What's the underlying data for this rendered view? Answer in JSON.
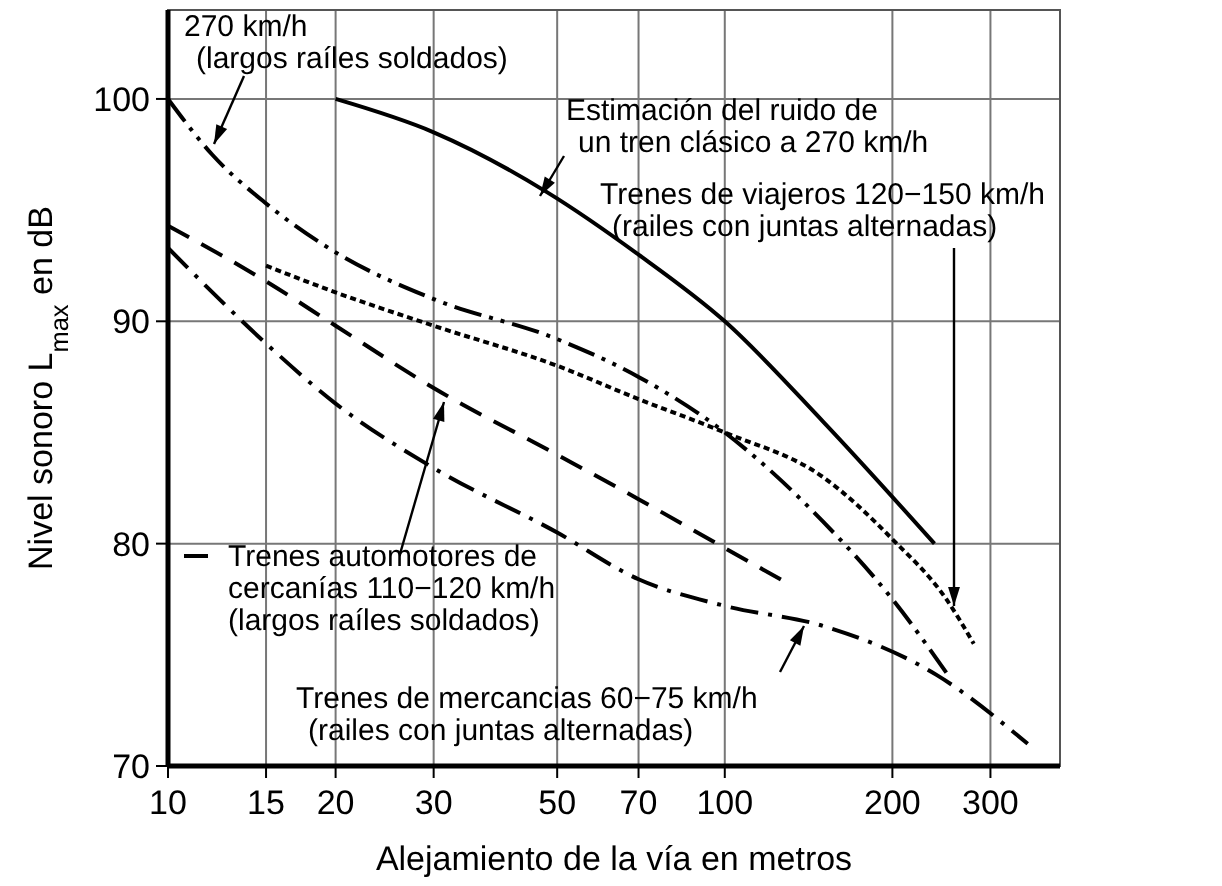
{
  "chart_data": {
    "type": "line",
    "xlabel": "Alejamiento de la vía en metros",
    "ylabel": "Nivel sonoro L$_{max}$en dB",
    "log": "x",
    "grid": true,
    "xlim": [
      10,
      400
    ],
    "ylim": [
      70,
      104
    ],
    "xticks": [
      10,
      15,
      20,
      30,
      50,
      70,
      100,
      200,
      300
    ],
    "yticks": [
      70,
      80,
      90,
      100
    ],
    "marker": "none",
    "legend": "bottom left",
    "series": [
      {
        "name": "270 km/h\n(largos raíles soldados)",
        "color": "#000000",
        "line_style": "dashdotdot",
        "x": [
          10,
          12,
          15,
          20,
          30,
          50,
          70,
          100,
          150,
          200,
          250
        ],
        "values": [
          100,
          97.5,
          95.3,
          93.1,
          91,
          89.2,
          87.5,
          85,
          81,
          77.5,
          74.2
        ]
      },
      {
        "name": "Estimación del ruido de\nun tren clásico a 270 km/h",
        "color": "#000000",
        "line_style": "solid",
        "x": [
          20,
          30,
          48,
          70,
          100,
          150,
          238
        ],
        "values": [
          100,
          98.5,
          95.8,
          93,
          90,
          85.5,
          80
        ]
      },
      {
        "name": "Trenes de viajeros 120−150 km/h\n(railes con juntas alternadas)",
        "color": "#000000",
        "line_style": "dotted",
        "x": [
          15,
          20,
          30,
          50,
          70,
          100,
          150,
          200,
          250,
          280
        ],
        "values": [
          92.5,
          91.3,
          89.8,
          88,
          86.5,
          85,
          83,
          80.2,
          77.5,
          75.5
        ]
      },
      {
        "name": "Trenes automotores de\ncercanías 110−120 km/h\n(largos raíles soldados)",
        "color": "#000000",
        "line_style": "dashed",
        "x": [
          10,
          15,
          20,
          30,
          50,
          70,
          100,
          130
        ],
        "values": [
          94.3,
          91.8,
          89.8,
          87,
          84,
          82,
          79.8,
          78.2
        ]
      },
      {
        "name": "Trenes de mercancias 60−75 km/h\n(railes con juntas alternadas)",
        "color": "#000000",
        "line_style": "dashdot",
        "x": [
          10,
          15,
          20,
          30,
          50,
          70,
          100,
          150,
          240,
          350
        ],
        "values": [
          93.3,
          89,
          86.3,
          83.4,
          80.5,
          78.4,
          77.2,
          76.3,
          74.1,
          71
        ]
      }
    ]
  }
}
